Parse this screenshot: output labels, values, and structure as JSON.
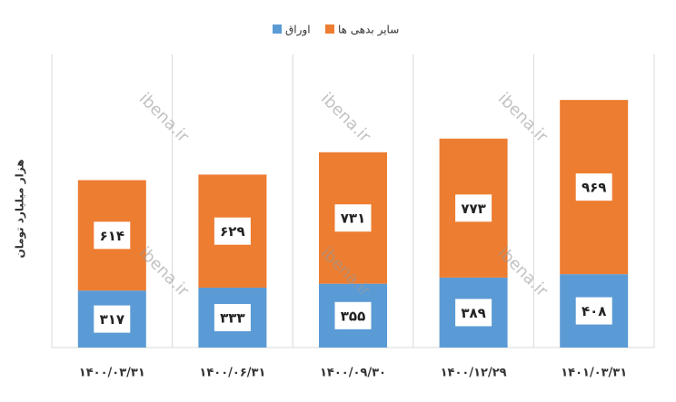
{
  "chart_data": {
    "type": "stacked-bar",
    "y_label": "هزار میلیارد تومان",
    "watermark": "ibena.ir",
    "categories": [
      "۱۴۰۰/۰۳/۳۱",
      "۱۴۰۰/۰۶/۳۱",
      "۱۴۰۰/۰۹/۳۰",
      "۱۴۰۰/۱۲/۲۹",
      "۱۴۰۱/۰۳/۳۱"
    ],
    "series": [
      {
        "name": "اوراق",
        "color": "#5b9bd5",
        "values": [
          317,
          333,
          355,
          389,
          408
        ],
        "value_labels": [
          "۳۱۷",
          "۳۳۳",
          "۳۵۵",
          "۳۸۹",
          "۴۰۸"
        ]
      },
      {
        "name": "سایر بدهی ها",
        "color": "#ed7d31",
        "values": [
          614,
          629,
          731,
          773,
          969
        ],
        "value_labels": [
          "۶۱۴",
          "۶۲۹",
          "۷۳۱",
          "۷۷۳",
          "۹۶۹"
        ]
      }
    ],
    "ylim": [
      0,
      1630
    ],
    "grid": true
  }
}
